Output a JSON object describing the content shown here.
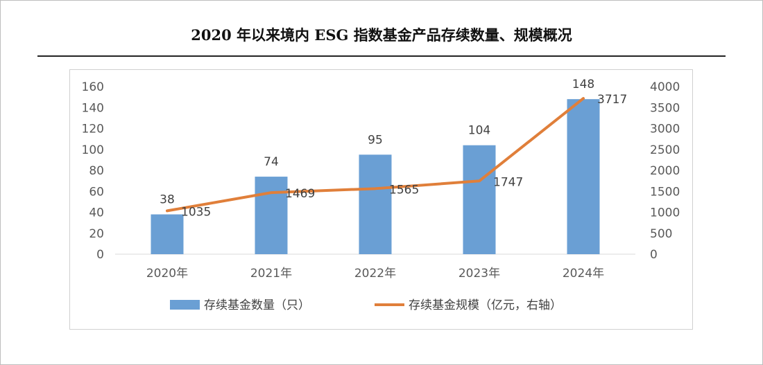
{
  "title": "2020 年以来境内 ESG 指数基金产品存续数量、规模概况",
  "colors": {
    "bar": "#6a9fd4",
    "line": "#e07f3a"
  },
  "chart_data": {
    "type": "bar",
    "categories": [
      "2020年",
      "2021年",
      "2022年",
      "2023年",
      "2024年"
    ],
    "series": [
      {
        "name": "存续基金数量（只）",
        "type": "bar",
        "axis": "left",
        "values": [
          38,
          74,
          95,
          104,
          148
        ]
      },
      {
        "name": "存续基金规模（亿元，右轴）",
        "type": "line",
        "axis": "right",
        "values": [
          1035,
          1469,
          1565,
          1747,
          3717
        ]
      }
    ],
    "ylim_left": [
      0,
      160
    ],
    "ylim_right": [
      0,
      4000
    ],
    "yticks_left": [
      "0",
      "20",
      "40",
      "60",
      "80",
      "100",
      "120",
      "140",
      "160"
    ],
    "yticks_right": [
      "0",
      "500",
      "1000",
      "1500",
      "2000",
      "2500",
      "3000",
      "3500",
      "4000"
    ],
    "grid": false,
    "legend_position": "bottom"
  }
}
